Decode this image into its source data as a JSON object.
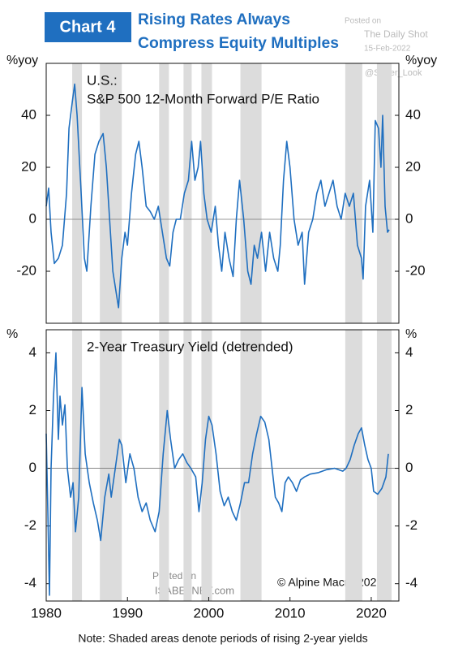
{
  "header": {
    "badge": "Chart 4",
    "title_lines": [
      "Rising Rates Always",
      "Compress Equity Multiples"
    ],
    "watermark": [
      "Posted on",
      "The Daily Shot",
      "15-Feb-2022",
      "@Sober_Look"
    ]
  },
  "chart_data": [
    {
      "type": "line",
      "color": "#1f6fc0",
      "y_unit": "%yoy",
      "annotations": [
        "U.S.:",
        "S&P 500 12-Month Forward P/E Ratio"
      ],
      "xlim": [
        1980,
        2023.4
      ],
      "ylim": [
        -40,
        60
      ],
      "yticks": [
        -20,
        0,
        20,
        40
      ],
      "shaded": [
        [
          1983.2,
          1984.4
        ],
        [
          1986.6,
          1989.3
        ],
        [
          1993.9,
          1995.1
        ],
        [
          1996.9,
          1997.9
        ],
        [
          1999.1,
          2000.4
        ],
        [
          2003.9,
          2006.5
        ],
        [
          2016.8,
          2018.9
        ],
        [
          2020.7,
          2022.5
        ]
      ],
      "x": [
        1980.0,
        1980.3,
        1980.6,
        1981.0,
        1981.5,
        1982.0,
        1982.5,
        1982.8,
        1983.2,
        1983.5,
        1983.8,
        1984.3,
        1984.7,
        1985.0,
        1985.5,
        1986.0,
        1986.5,
        1987.0,
        1987.4,
        1987.8,
        1988.2,
        1988.6,
        1988.9,
        1989.3,
        1989.7,
        1990.0,
        1990.5,
        1991.0,
        1991.4,
        1991.8,
        1992.3,
        1992.8,
        1993.3,
        1993.8,
        1994.3,
        1994.8,
        1995.2,
        1995.6,
        1996.0,
        1996.5,
        1997.0,
        1997.5,
        1997.9,
        1998.3,
        1998.7,
        1999.0,
        1999.4,
        1999.8,
        2000.3,
        2000.8,
        2001.2,
        2001.6,
        2002.0,
        2002.5,
        2003.0,
        2003.4,
        2003.8,
        2004.3,
        2004.8,
        2005.2,
        2005.6,
        2006.0,
        2006.5,
        2007.0,
        2007.5,
        2008.0,
        2008.5,
        2008.8,
        2009.2,
        2009.6,
        2010.0,
        2010.5,
        2011.0,
        2011.5,
        2011.8,
        2012.3,
        2012.8,
        2013.3,
        2013.8,
        2014.3,
        2014.8,
        2015.3,
        2015.8,
        2016.3,
        2016.8,
        2017.3,
        2017.8,
        2018.3,
        2018.8,
        2019.0,
        2019.3,
        2019.8,
        2020.2,
        2020.5,
        2020.9,
        2021.2,
        2021.4,
        2021.7,
        2022.0,
        2022.2
      ],
      "values": [
        5,
        12,
        -5,
        -17,
        -15,
        -10,
        10,
        35,
        45,
        52,
        40,
        10,
        -15,
        -20,
        5,
        25,
        30,
        33,
        20,
        0,
        -20,
        -28,
        -34,
        -15,
        -5,
        -10,
        10,
        25,
        30,
        20,
        5,
        3,
        0,
        5,
        -5,
        -15,
        -18,
        -5,
        0,
        0,
        10,
        15,
        30,
        15,
        20,
        30,
        10,
        0,
        -5,
        5,
        -10,
        -20,
        -5,
        -15,
        -22,
        0,
        15,
        0,
        -20,
        -25,
        -10,
        -15,
        -5,
        -20,
        -5,
        -15,
        -20,
        -10,
        15,
        30,
        20,
        0,
        -10,
        -5,
        -25,
        -5,
        0,
        10,
        15,
        5,
        10,
        15,
        5,
        0,
        10,
        5,
        10,
        -10,
        -15,
        -23,
        5,
        15,
        -5,
        38,
        35,
        20,
        40,
        5,
        -5,
        -4
      ]
    },
    {
      "type": "line",
      "color": "#1f6fc0",
      "y_unit": "%",
      "annotations": [
        "2-Year Treasury Yield (detrended)"
      ],
      "xlim": [
        1980,
        2023.4
      ],
      "ylim": [
        -4.6,
        4.8
      ],
      "yticks": [
        -4,
        -2,
        0,
        2,
        4
      ],
      "xticks": [
        1980,
        1990,
        2000,
        2010,
        2020
      ],
      "shaded": [
        [
          1983.2,
          1984.4
        ],
        [
          1986.6,
          1989.3
        ],
        [
          1993.9,
          1995.1
        ],
        [
          1996.9,
          1997.9
        ],
        [
          1999.1,
          2000.4
        ],
        [
          2003.9,
          2006.5
        ],
        [
          2016.8,
          2018.9
        ],
        [
          2020.7,
          2022.5
        ]
      ],
      "x": [
        1980.0,
        1980.2,
        1980.4,
        1980.6,
        1980.9,
        1981.2,
        1981.5,
        1981.7,
        1982.0,
        1982.3,
        1982.6,
        1983.0,
        1983.3,
        1983.6,
        1984.0,
        1984.4,
        1984.8,
        1985.3,
        1985.8,
        1986.3,
        1986.7,
        1987.2,
        1987.7,
        1988.0,
        1988.5,
        1989.0,
        1989.3,
        1989.8,
        1990.3,
        1990.8,
        1991.3,
        1991.8,
        1992.3,
        1992.8,
        1993.4,
        1993.9,
        1994.4,
        1994.9,
        1995.3,
        1995.8,
        1996.3,
        1996.8,
        1997.3,
        1997.8,
        1998.4,
        1998.8,
        1999.2,
        1999.6,
        2000.0,
        2000.4,
        2000.9,
        2001.4,
        2001.9,
        2002.4,
        2002.9,
        2003.4,
        2003.9,
        2004.4,
        2004.9,
        2005.4,
        2005.9,
        2006.4,
        2006.9,
        2007.4,
        2007.8,
        2008.2,
        2008.6,
        2009.0,
        2009.4,
        2009.8,
        2010.3,
        2010.8,
        2011.3,
        2011.8,
        2012.5,
        2013.5,
        2014.5,
        2015.5,
        2016.5,
        2016.9,
        2017.4,
        2017.9,
        2018.4,
        2018.8,
        2019.2,
        2019.6,
        2020.0,
        2020.3,
        2020.8,
        2021.3,
        2021.8,
        2022.1
      ],
      "values": [
        1.2,
        -1.5,
        -4.4,
        0,
        2.5,
        4.0,
        1,
        2.5,
        1.5,
        2.2,
        0,
        -1,
        -0.5,
        -2.2,
        -1,
        2.8,
        0.5,
        -0.5,
        -1.2,
        -1.8,
        -2.5,
        -1,
        -0.2,
        -1,
        0,
        1,
        0.8,
        -0.5,
        0.5,
        0,
        -1,
        -1.5,
        -1.2,
        -1.8,
        -2.2,
        -1.5,
        0.5,
        2.0,
        1,
        0,
        0.3,
        0.5,
        0.2,
        0,
        -0.3,
        -1.5,
        -0.5,
        1,
        1.8,
        1.5,
        0.5,
        -0.8,
        -1.3,
        -1,
        -1.5,
        -1.8,
        -1.2,
        -0.5,
        -0.5,
        0.5,
        1.2,
        1.8,
        1.6,
        1.0,
        0,
        -1,
        -1.2,
        -1.5,
        -0.5,
        -0.3,
        -0.5,
        -0.8,
        -0.4,
        -0.3,
        -0.2,
        -0.15,
        -0.05,
        0,
        -0.1,
        0,
        0.3,
        0.8,
        1.2,
        1.4,
        0.8,
        0.3,
        0,
        -0.8,
        -0.9,
        -0.7,
        -0.3,
        0.5
      ]
    }
  ],
  "footer": {
    "source": "© Alpine Macro 2022",
    "watermark": [
      "Posted on",
      "ISABELNET.com"
    ],
    "note": "Note: Shaded areas denote periods of rising 2-year yields"
  }
}
